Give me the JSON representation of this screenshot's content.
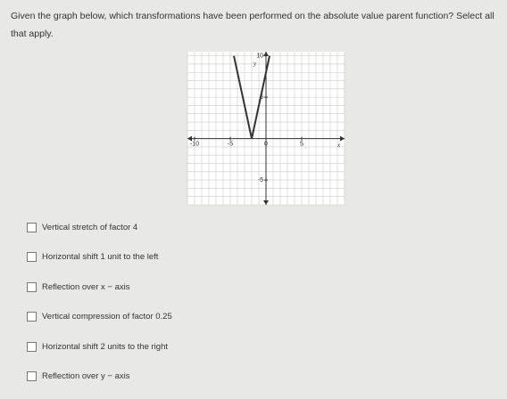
{
  "question": "Given the graph below, which transformations have been performed on the absolute value parent function? Select all that apply.",
  "graph": {
    "xlim": [
      -11,
      11
    ],
    "ylim": [
      -8,
      10.5
    ],
    "xticks": [
      -10,
      -5,
      0,
      5
    ],
    "yticks": [
      10,
      5,
      -5
    ],
    "grid": true,
    "xlabel": "x",
    "ylabel": "y",
    "color": "#333333",
    "curve": {
      "x": [
        -4.5,
        -2,
        0.5
      ],
      "y": [
        10,
        0,
        10
      ]
    }
  },
  "options": [
    "Vertical stretch of factor 4",
    "Horizontal shift 1 unit to the left",
    "Reflection over x − axis",
    "Vertical compression of factor 0.25",
    "Horizontal shift 2 units to the right",
    "Reflection over y − axis"
  ]
}
